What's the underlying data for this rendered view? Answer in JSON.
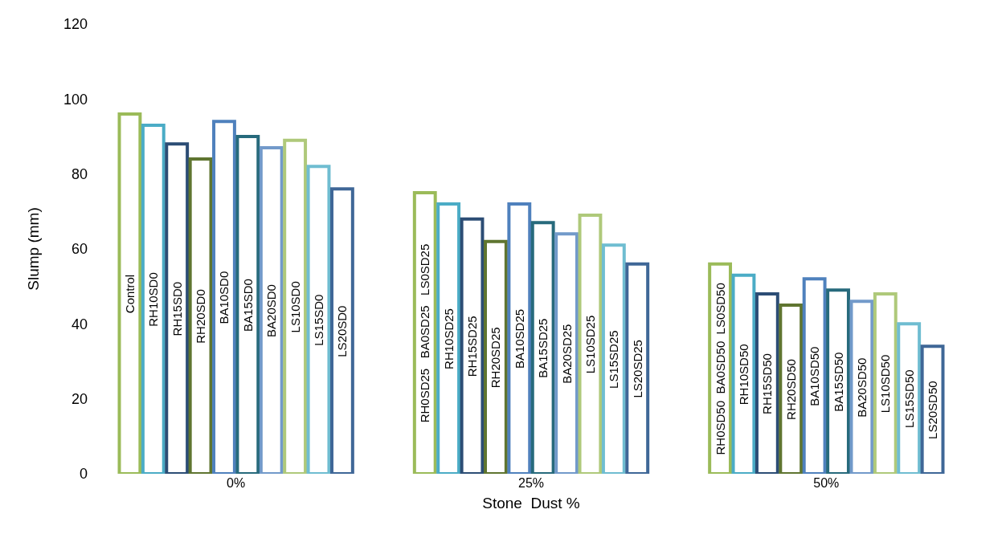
{
  "chart_data": {
    "type": "bar",
    "xlabel": "Stone  Dust %",
    "ylabel": "Slump (mm)",
    "categories": [
      "0%",
      "25%",
      "50%"
    ],
    "ylim": [
      0,
      120
    ],
    "yticks": [
      0,
      20,
      40,
      60,
      80,
      100,
      120
    ],
    "series": [
      {
        "color": "#9bbb59",
        "values": [
          96,
          75,
          56
        ],
        "value_labels": [
          "Control",
          "RH0SD25   BA0SD25   LS0SD25",
          "RH0SD50  BA0SD50  LS0SD50"
        ]
      },
      {
        "color": "#4bacc6",
        "values": [
          93,
          72,
          53
        ],
        "value_labels": [
          "RH10SD0",
          "RH10SD25",
          "RH10SD50"
        ]
      },
      {
        "color": "#2c4d75",
        "values": [
          88,
          68,
          48
        ],
        "value_labels": [
          "RH15SD0",
          "RH15SD25",
          "RH15SD50"
        ]
      },
      {
        "color": "#5f7530",
        "values": [
          84,
          62,
          45
        ],
        "value_labels": [
          "RH20SD0",
          "RH20SD25",
          "RH20SD50"
        ]
      },
      {
        "color": "#4f81bd",
        "values": [
          94,
          72,
          52
        ],
        "value_labels": [
          "BA10SD0",
          "BA10SD25",
          "BA10SD50"
        ]
      },
      {
        "color": "#276a7c",
        "values": [
          90,
          67,
          49
        ],
        "value_labels": [
          "BA15SD0",
          "BA15SD25",
          "BA15SD50"
        ]
      },
      {
        "color": "#729aca",
        "values": [
          87,
          64,
          46
        ],
        "value_labels": [
          "BA20SD0",
          "BA20SD25",
          "BA20SD50"
        ]
      },
      {
        "color": "#afc97a",
        "values": [
          89,
          69,
          48
        ],
        "value_labels": [
          "LS10SD0",
          "LS10SD25",
          "LS10SD50"
        ]
      },
      {
        "color": "#6fbdd1",
        "values": [
          82,
          61,
          40
        ],
        "value_labels": [
          "LS15SD0",
          "LS15SD25",
          "LS15SD50"
        ]
      },
      {
        "color": "#3f6797",
        "values": [
          76,
          56,
          34
        ],
        "value_labels": [
          "LS20SD0",
          "LS20SD25",
          "LS20SD50"
        ]
      }
    ]
  }
}
